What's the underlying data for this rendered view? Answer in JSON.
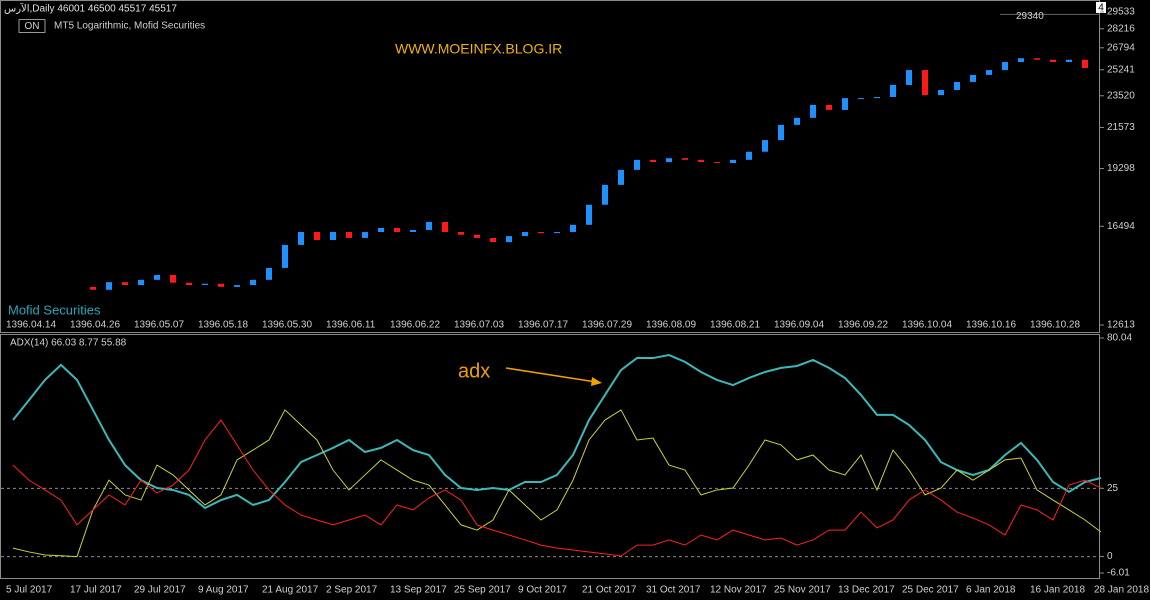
{
  "toolbar": {
    "button": "ON",
    "corner_tag": "4"
  },
  "chart_data": [
    {
      "type": "candlestick",
      "title": "الآرس,Daily  46001 46500 45517 45517",
      "subtitle": "MT5 Logarithmic, Mofid Securities",
      "annotation": "WWW.MOEINFX.BLOG.IR",
      "watermark": "Mofid Securities",
      "price_marker": 29340,
      "log_scale": true,
      "up_color": "#1e90ff",
      "down_color": "#ff1a1a",
      "ylim": [
        12613,
        29533
      ],
      "yticks": [
        29533,
        28216,
        26794,
        25241,
        23520,
        21573,
        19298,
        16494,
        12613
      ],
      "categories": [
        "1396.04.14",
        null,
        null,
        null,
        "1396.04.26",
        null,
        null,
        null,
        "1396.05.07",
        null,
        null,
        null,
        "1396.05.18",
        null,
        null,
        null,
        "1396.05.30",
        null,
        null,
        null,
        "1396.06.11",
        null,
        null,
        null,
        "1396.06.22",
        null,
        null,
        null,
        "1396.07.03",
        null,
        null,
        null,
        "1396.07.17",
        null,
        null,
        null,
        "1396.07.29",
        null,
        null,
        null,
        "1396.08.09",
        null,
        null,
        null,
        "1396.08.21",
        null,
        null,
        null,
        "1396.09.04",
        null,
        null,
        null,
        "1396.09.22",
        null,
        null,
        null,
        "1396.10.04",
        null,
        null,
        null,
        "1396.10.16",
        null,
        null,
        null,
        "1396.10.28",
        null,
        null,
        null,
        null
      ],
      "open": [
        null,
        null,
        null,
        null,
        null,
        13990,
        13880,
        14170,
        14060,
        14260,
        14450,
        14150,
        14060,
        14110,
        13990,
        14060,
        14260,
        14730,
        15680,
        16240,
        15890,
        16240,
        15980,
        16240,
        16420,
        16240,
        16330,
        16690,
        16240,
        16120,
        15980,
        15800,
        16060,
        16240,
        16190,
        16240,
        16560,
        17490,
        18460,
        19230,
        19760,
        19640,
        19850,
        19760,
        19640,
        19590,
        19760,
        20200,
        20850,
        21730,
        22150,
        22940,
        22630,
        23370,
        23370,
        23440,
        24220,
        25220,
        23560,
        23890,
        24420,
        24890,
        25220,
        25780,
        26050,
        25940,
        25780,
        25940,
        null
      ],
      "close": [
        null,
        null,
        null,
        null,
        null,
        13880,
        14170,
        14060,
        14260,
        14450,
        14150,
        14060,
        14110,
        13990,
        14060,
        14260,
        14730,
        15680,
        16240,
        15890,
        16240,
        15980,
        16240,
        16420,
        16240,
        16330,
        16690,
        16240,
        16120,
        15980,
        15800,
        16060,
        16240,
        16190,
        16240,
        16560,
        17490,
        18460,
        19230,
        19760,
        19640,
        19850,
        19760,
        19640,
        19590,
        19760,
        20200,
        20850,
        21730,
        22150,
        22940,
        22630,
        23370,
        23370,
        23440,
        24220,
        25220,
        23560,
        23890,
        24420,
        24890,
        25220,
        25780,
        26050,
        25940,
        25780,
        25940,
        25360,
        null
      ]
    },
    {
      "type": "line",
      "title": "ADX(14) 66.03 8.77 55.88",
      "annotation": "adx",
      "ylim": [
        -6.01,
        80.04
      ],
      "yticks": [
        80.04,
        25.0,
        0.0,
        -6.01
      ],
      "grid": true,
      "categories": [
        "5 Jul 2017",
        null,
        null,
        null,
        "17 Jul 2017",
        null,
        null,
        null,
        "29 Jul 2017",
        null,
        null,
        null,
        "9 Aug 2017",
        null,
        null,
        null,
        "21 Aug 2017",
        null,
        null,
        null,
        "2 Sep 2017",
        null,
        null,
        null,
        "13 Sep 2017",
        null,
        null,
        null,
        "25 Sep 2017",
        null,
        null,
        null,
        "9 Oct 2017",
        null,
        null,
        null,
        "21 Oct 2017",
        null,
        null,
        null,
        "31 Oct 2017",
        null,
        null,
        null,
        "12 Nov 2017",
        null,
        null,
        null,
        "25 Nov 2017",
        null,
        null,
        null,
        "13 Dec 2017",
        null,
        null,
        null,
        "25 Dec 2017",
        null,
        null,
        null,
        "6 Jan 2018",
        null,
        null,
        null,
        "16 Jan 2018",
        null,
        null,
        null,
        "28 Jan 2018"
      ],
      "series": [
        {
          "color": "#3cb8b8",
          "width": 2,
          "values": [
            50.0,
            57.3,
            64.7,
            70.2,
            64.7,
            53.7,
            42.7,
            33.5,
            28.0,
            25.1,
            24.4,
            22.6,
            17.8,
            20.7,
            22.6,
            18.9,
            20.7,
            27.3,
            34.6,
            37.2,
            39.8,
            42.7,
            38.3,
            39.8,
            42.7,
            39.0,
            37.2,
            29.9,
            25.1,
            24.4,
            25.1,
            24.4,
            27.3,
            27.3,
            29.9,
            37.2,
            50.0,
            59.2,
            68.3,
            72.7,
            72.7,
            73.8,
            71.3,
            67.6,
            64.7,
            62.8,
            65.4,
            67.6,
            69.1,
            69.8,
            72.0,
            69.1,
            65.4,
            59.2,
            51.9,
            51.9,
            48.2,
            42.7,
            34.6,
            31.7,
            29.9,
            31.7,
            37.2,
            41.6,
            35.4,
            27.3,
            23.7,
            27.3,
            28.8
          ]
        },
        {
          "color": "#c8d23c",
          "width": 1,
          "values": [
            3.1,
            1.7,
            0.6,
            0.3,
            0.0,
            17.1,
            28.0,
            22.6,
            20.7,
            33.5,
            29.9,
            24.4,
            18.9,
            22.6,
            35.4,
            39.0,
            42.7,
            53.7,
            48.2,
            42.7,
            31.7,
            24.4,
            29.9,
            35.4,
            31.7,
            28.0,
            26.2,
            18.9,
            11.6,
            9.7,
            13.4,
            24.4,
            18.9,
            13.4,
            17.1,
            28.0,
            42.7,
            50.0,
            53.7,
            42.7,
            43.4,
            33.5,
            31.7,
            22.6,
            24.4,
            25.1,
            33.5,
            42.7,
            40.9,
            35.4,
            37.2,
            31.7,
            29.9,
            37.2,
            24.4,
            39.0,
            31.7,
            22.6,
            25.1,
            31.7,
            28.0,
            31.7,
            35.4,
            36.1,
            24.4,
            20.7,
            17.1,
            13.4,
            9.0
          ]
        },
        {
          "color": "#ff2020",
          "width": 1,
          "values": [
            33.5,
            28.0,
            24.4,
            20.7,
            11.6,
            17.1,
            22.6,
            18.9,
            28.0,
            23.3,
            26.2,
            31.7,
            42.7,
            50.0,
            40.9,
            31.7,
            24.4,
            18.9,
            15.2,
            13.4,
            11.6,
            13.4,
            15.2,
            11.6,
            18.9,
            17.1,
            21.5,
            24.4,
            20.7,
            11.6,
            9.7,
            7.9,
            6.1,
            4.2,
            3.1,
            2.4,
            1.7,
            1.0,
            0.2,
            4.2,
            4.2,
            6.1,
            4.2,
            7.9,
            6.1,
            9.7,
            7.9,
            6.1,
            6.8,
            4.2,
            6.1,
            9.7,
            9.7,
            16.3,
            10.5,
            13.4,
            20.7,
            24.4,
            20.7,
            16.3,
            14.1,
            11.6,
            7.9,
            18.9,
            17.1,
            13.4,
            26.2,
            28.0,
            25.1
          ]
        }
      ]
    }
  ]
}
